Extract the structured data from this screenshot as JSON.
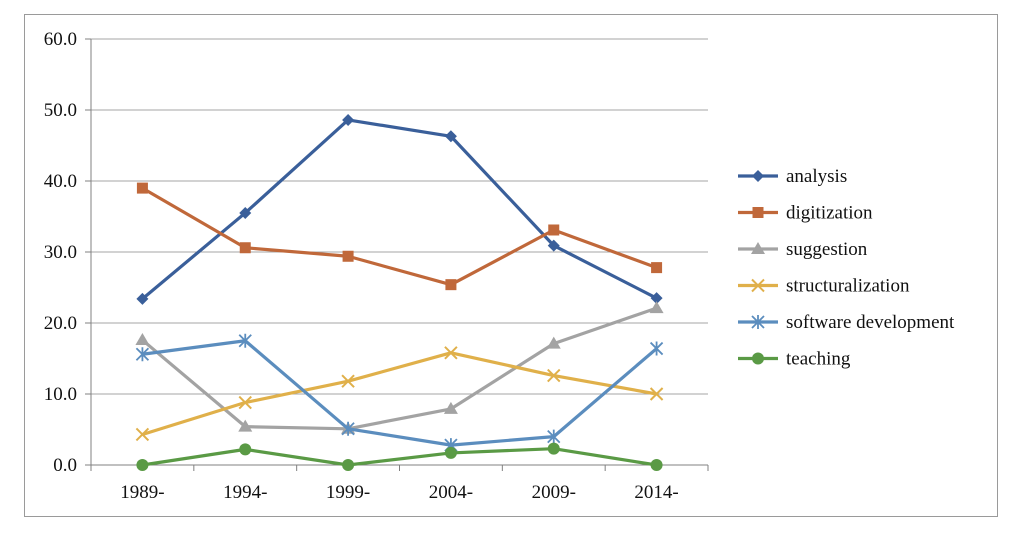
{
  "chart_data": {
    "type": "line",
    "categories": [
      "1989-",
      "1994-",
      "1999-",
      "2004-",
      "2009-",
      "2014-"
    ],
    "ylim": [
      0,
      60
    ],
    "yticks": [
      "0.0",
      "10.0",
      "20.0",
      "30.0",
      "40.0",
      "50.0",
      "60.0"
    ],
    "grid": true,
    "legend_position": "right",
    "series": [
      {
        "name": "analysis",
        "color": "#3a5f9a",
        "marker": "diamond",
        "values": [
          23.4,
          35.5,
          48.6,
          46.3,
          30.9,
          23.5
        ]
      },
      {
        "name": "digitization",
        "color": "#c0683a",
        "marker": "square",
        "values": [
          39.0,
          30.6,
          29.4,
          25.4,
          33.1,
          27.8
        ]
      },
      {
        "name": "suggestion",
        "color": "#a3a3a3",
        "marker": "triangle",
        "values": [
          17.6,
          5.4,
          5.1,
          7.9,
          17.1,
          22.1
        ]
      },
      {
        "name": "structuralization",
        "color": "#e0b04a",
        "marker": "x",
        "values": [
          4.3,
          8.8,
          11.8,
          15.8,
          12.6,
          10.0
        ]
      },
      {
        "name": "software development",
        "color": "#5b8dbe",
        "marker": "star",
        "values": [
          15.6,
          17.5,
          5.1,
          2.8,
          4.0,
          16.4
        ]
      },
      {
        "name": "teaching",
        "color": "#5a9a45",
        "marker": "circle",
        "values": [
          0.0,
          2.2,
          0.0,
          1.7,
          2.3,
          0.0
        ]
      }
    ]
  }
}
